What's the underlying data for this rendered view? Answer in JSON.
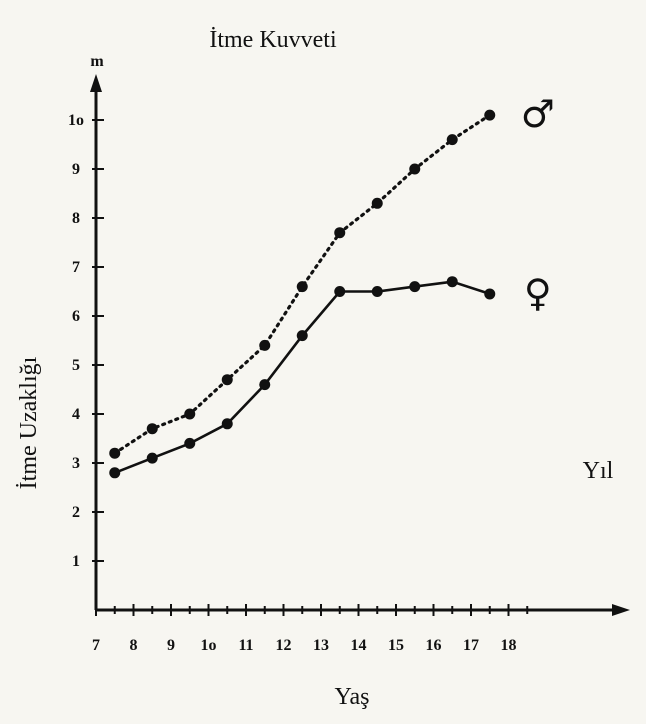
{
  "chart_data": {
    "type": "line",
    "title": "İtme Kuvveti",
    "xlabel": "Yaş",
    "ylabel": "İtme Uzaklığı",
    "y_unit": "m",
    "annotation": "Yıl",
    "xlim": [
      7,
      18
    ],
    "ylim": [
      0,
      11
    ],
    "x_tick_labels": [
      "7",
      "8",
      "9",
      "1o",
      "11",
      "12",
      "13",
      "14",
      "15",
      "16",
      "17",
      "18"
    ],
    "y_tick_labels": [
      "1",
      "2",
      "3",
      "4",
      "5",
      "6",
      "7",
      "8",
      "9",
      "1o"
    ],
    "series": [
      {
        "name": "♂",
        "style": "dotted",
        "x": [
          7.5,
          8.5,
          9.5,
          10.5,
          11.5,
          12.5,
          13.5,
          14.5,
          15.5,
          16.5,
          17.5
        ],
        "values": [
          3.2,
          3.7,
          4.0,
          4.7,
          5.4,
          6.6,
          7.7,
          8.3,
          9.0,
          9.6,
          10.1
        ]
      },
      {
        "name": "♀",
        "style": "solid",
        "x": [
          7.5,
          8.5,
          9.5,
          10.5,
          11.5,
          12.5,
          13.5,
          14.5,
          15.5,
          16.5,
          17.5
        ],
        "values": [
          2.8,
          3.1,
          3.4,
          3.8,
          4.6,
          5.6,
          6.5,
          6.5,
          6.6,
          6.7,
          6.45
        ]
      }
    ],
    "colors": {
      "ink": "#111111",
      "background": "#f7f6f1"
    }
  }
}
